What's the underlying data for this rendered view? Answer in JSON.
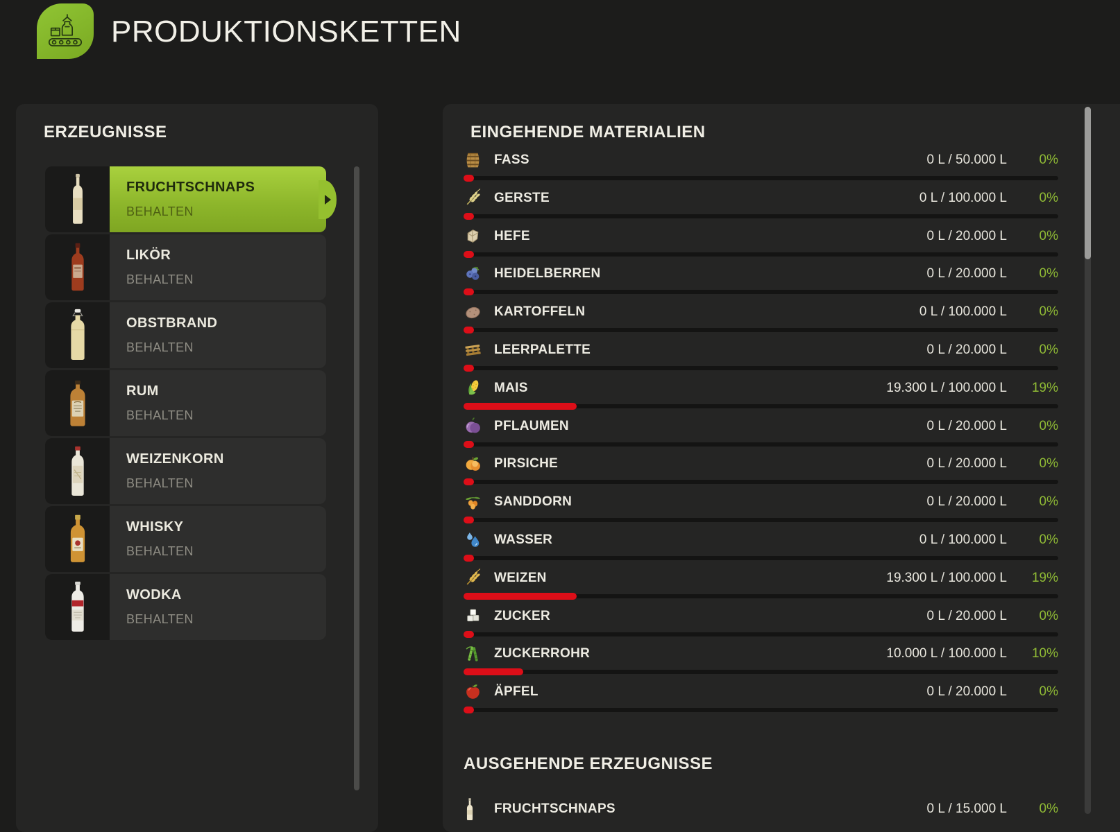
{
  "header": {
    "title": "PRODUKTIONSKETTEN",
    "icon": "production-chain-icon"
  },
  "products_panel": {
    "title": "ERZEUGNISSE",
    "items": [
      {
        "name": "FRUCHTSCHNAPS",
        "mode": "BEHALTEN",
        "selected": true,
        "icon": "bottle-fruchtschnaps-icon"
      },
      {
        "name": "LIKÖR",
        "mode": "BEHALTEN",
        "selected": false,
        "icon": "bottle-likoer-icon"
      },
      {
        "name": "OBSTBRAND",
        "mode": "BEHALTEN",
        "selected": false,
        "icon": "bottle-obstbrand-icon"
      },
      {
        "name": "RUM",
        "mode": "BEHALTEN",
        "selected": false,
        "icon": "bottle-rum-icon"
      },
      {
        "name": "WEIZENKORN",
        "mode": "BEHALTEN",
        "selected": false,
        "icon": "bottle-weizenkorn-icon"
      },
      {
        "name": "WHISKY",
        "mode": "BEHALTEN",
        "selected": false,
        "icon": "bottle-whisky-icon"
      },
      {
        "name": "WODKA",
        "mode": "BEHALTEN",
        "selected": false,
        "icon": "bottle-wodka-icon"
      }
    ]
  },
  "materials_panel": {
    "incoming_title": "EINGEHENDE MATERIALIEN",
    "outgoing_title": "AUSGEHENDE ERZEUGNISSE",
    "incoming": [
      {
        "name": "FASS",
        "amount": "0 L / 50.000 L",
        "percent": "0%",
        "fill": 0,
        "icon": "barrel-icon"
      },
      {
        "name": "GERSTE",
        "amount": "0 L / 100.000 L",
        "percent": "0%",
        "fill": 0,
        "icon": "barley-icon"
      },
      {
        "name": "HEFE",
        "amount": "0 L / 20.000 L",
        "percent": "0%",
        "fill": 0,
        "icon": "yeast-icon"
      },
      {
        "name": "HEIDELBERREN",
        "amount": "0 L / 20.000 L",
        "percent": "0%",
        "fill": 0,
        "icon": "blueberries-icon"
      },
      {
        "name": "KARTOFFELN",
        "amount": "0 L / 100.000 L",
        "percent": "0%",
        "fill": 0,
        "icon": "potato-icon"
      },
      {
        "name": "LEERPALETTE",
        "amount": "0 L / 20.000 L",
        "percent": "0%",
        "fill": 0,
        "icon": "pallet-icon"
      },
      {
        "name": "MAIS",
        "amount": "19.300 L / 100.000 L",
        "percent": "19%",
        "fill": 19,
        "icon": "corn-icon"
      },
      {
        "name": "PFLAUMEN",
        "amount": "0 L / 20.000 L",
        "percent": "0%",
        "fill": 0,
        "icon": "plum-icon"
      },
      {
        "name": "PIRSICHE",
        "amount": "0 L / 20.000 L",
        "percent": "0%",
        "fill": 0,
        "icon": "peach-icon"
      },
      {
        "name": "SANDDORN",
        "amount": "0 L / 20.000 L",
        "percent": "0%",
        "fill": 0,
        "icon": "seabuckthorn-icon"
      },
      {
        "name": "WASSER",
        "amount": "0 L / 100.000 L",
        "percent": "0%",
        "fill": 0,
        "icon": "water-icon"
      },
      {
        "name": "WEIZEN",
        "amount": "19.300 L / 100.000 L",
        "percent": "19%",
        "fill": 19,
        "icon": "wheat-icon"
      },
      {
        "name": "ZUCKER",
        "amount": "0 L / 20.000 L",
        "percent": "0%",
        "fill": 0,
        "icon": "sugar-icon"
      },
      {
        "name": "ZUCKERROHR",
        "amount": "10.000 L / 100.000 L",
        "percent": "10%",
        "fill": 10,
        "icon": "sugarcane-icon"
      },
      {
        "name": "ÄPFEL",
        "amount": "0 L / 20.000 L",
        "percent": "0%",
        "fill": 0,
        "icon": "apple-icon"
      }
    ],
    "outgoing": [
      {
        "name": "FRUCHTSCHNAPS",
        "amount": "0 L / 15.000 L",
        "percent": "0%",
        "icon": "schnapps-bottle-icon"
      }
    ]
  },
  "colors": {
    "accent_green": "#8cb52a",
    "percent_green": "#8fba35",
    "progress_red": "#dd0e18",
    "panel_bg": "#252524",
    "page_bg": "#1c1c1b"
  }
}
